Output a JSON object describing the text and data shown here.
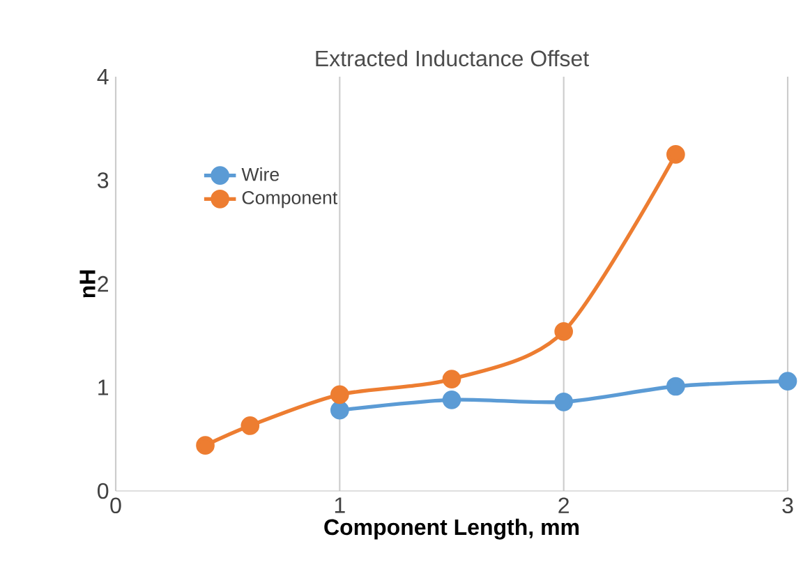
{
  "chart_data": {
    "type": "line",
    "title": "Extracted Inductance Offset",
    "xlabel": "Component Length, mm",
    "ylabel": "nH",
    "xlim": [
      0,
      3
    ],
    "ylim": [
      0,
      4
    ],
    "xticks": [
      0,
      1,
      2,
      3
    ],
    "yticks": [
      0,
      1,
      2,
      3,
      4
    ],
    "grid": "x",
    "legend": "top left",
    "marker": "circle",
    "line_style": "solid",
    "series": [
      {
        "name": "Wire",
        "color": "#5b9bd5",
        "x": [
          1,
          1.5,
          2,
          2.5,
          3
        ],
        "values": [
          0.78,
          0.88,
          0.86,
          1.01,
          1.06
        ]
      },
      {
        "name": "Component",
        "color": "#ed7d31",
        "x": [
          0.4,
          0.6,
          1,
          1.5,
          2,
          2.5
        ],
        "values": [
          0.44,
          0.63,
          0.93,
          1.08,
          1.54,
          3.25
        ]
      }
    ]
  }
}
